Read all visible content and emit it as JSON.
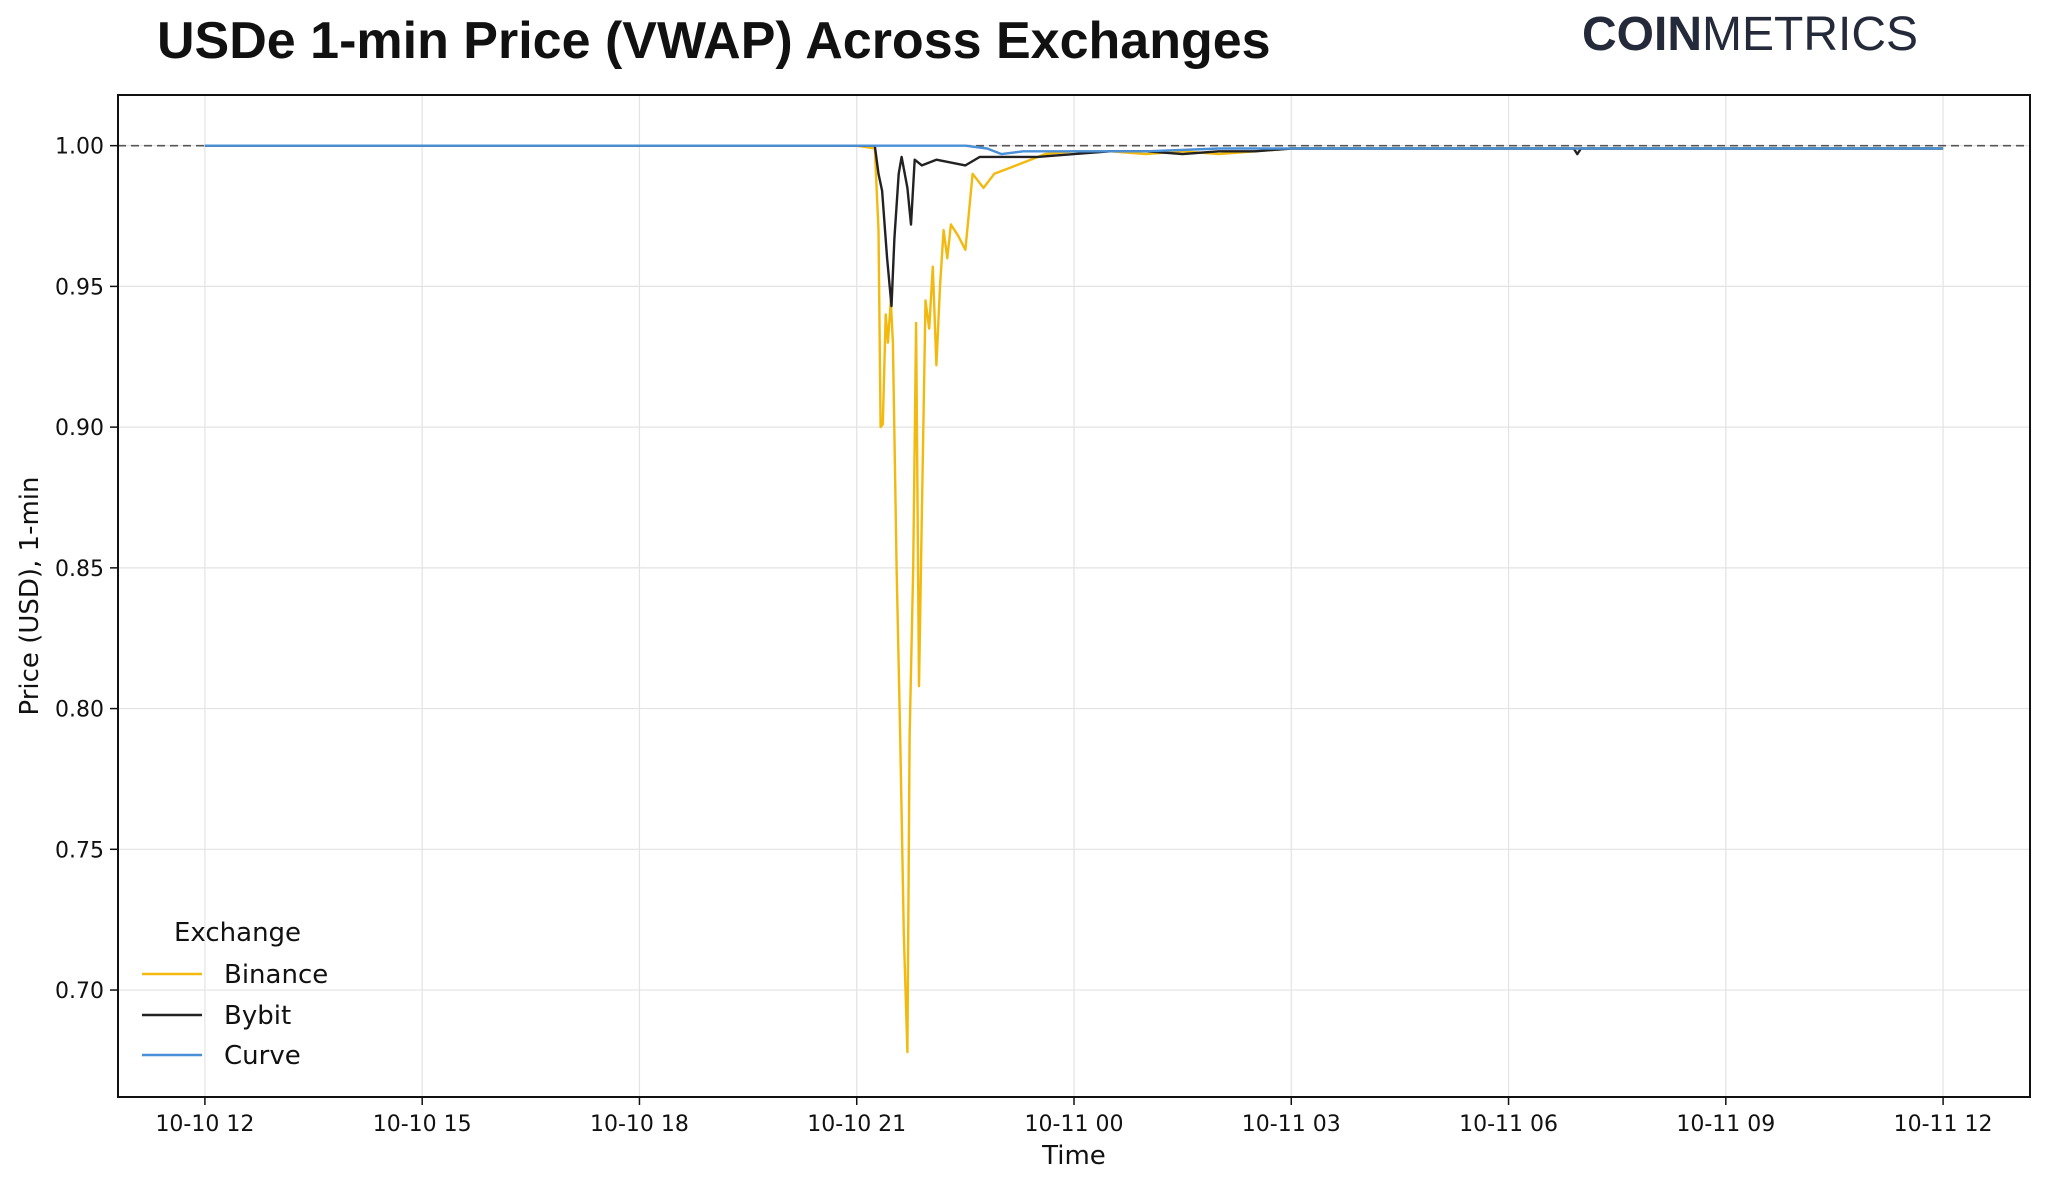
{
  "header": {
    "brand_bold": "COIN",
    "brand_light": "METRICS"
  },
  "chart_data": {
    "type": "line",
    "title": "USDe 1-min Price (VWAP) Across Exchanges",
    "xlabel": "Time",
    "ylabel": "Price (USD), 1-min",
    "x_ticks": [
      "10-10 12",
      "10-10 15",
      "10-10 18",
      "10-10 21",
      "10-11 00",
      "10-11 03",
      "10-11 06",
      "10-11 09",
      "10-11 12"
    ],
    "y_ticks": [
      "0.70",
      "0.75",
      "0.80",
      "0.85",
      "0.90",
      "0.95",
      "1.00"
    ],
    "xlim_hours": [
      -1.2,
      25.2
    ],
    "ylim": [
      0.662,
      1.018
    ],
    "reference_line": 1.0,
    "grid": true,
    "legend": {
      "title": "Exchange",
      "placement": "bottom-left"
    },
    "series": [
      {
        "name": "Binance",
        "color": "#f2b90f",
        "points_hours": [
          [
            0.0,
            1.0
          ],
          [
            9.0,
            1.0
          ],
          [
            9.25,
            0.999
          ],
          [
            9.3,
            0.97
          ],
          [
            9.33,
            0.9
          ],
          [
            9.36,
            0.901
          ],
          [
            9.4,
            0.94
          ],
          [
            9.43,
            0.93
          ],
          [
            9.47,
            0.945
          ],
          [
            9.5,
            0.93
          ],
          [
            9.55,
            0.85
          ],
          [
            9.6,
            0.79
          ],
          [
            9.65,
            0.72
          ],
          [
            9.7,
            0.678
          ],
          [
            9.73,
            0.79
          ],
          [
            9.78,
            0.85
          ],
          [
            9.82,
            0.937
          ],
          [
            9.86,
            0.808
          ],
          [
            9.9,
            0.87
          ],
          [
            9.95,
            0.945
          ],
          [
            10.0,
            0.935
          ],
          [
            10.05,
            0.957
          ],
          [
            10.1,
            0.922
          ],
          [
            10.15,
            0.95
          ],
          [
            10.2,
            0.97
          ],
          [
            10.25,
            0.96
          ],
          [
            10.3,
            0.972
          ],
          [
            10.4,
            0.968
          ],
          [
            10.5,
            0.963
          ],
          [
            10.6,
            0.99
          ],
          [
            10.75,
            0.985
          ],
          [
            10.9,
            0.99
          ],
          [
            11.1,
            0.992
          ],
          [
            11.3,
            0.994
          ],
          [
            11.6,
            0.997
          ],
          [
            12.0,
            0.998
          ],
          [
            12.5,
            0.998
          ],
          [
            13.0,
            0.997
          ],
          [
            13.5,
            0.998
          ],
          [
            14.0,
            0.997
          ],
          [
            14.5,
            0.998
          ],
          [
            15.0,
            0.999
          ],
          [
            18.0,
            0.999
          ],
          [
            21.0,
            0.999
          ],
          [
            24.0,
            0.999
          ]
        ]
      },
      {
        "name": "Bybit",
        "color": "#222222",
        "points_hours": [
          [
            0.0,
            1.0
          ],
          [
            9.0,
            1.0
          ],
          [
            9.25,
            1.0
          ],
          [
            9.3,
            0.99
          ],
          [
            9.35,
            0.984
          ],
          [
            9.42,
            0.96
          ],
          [
            9.48,
            0.943
          ],
          [
            9.52,
            0.967
          ],
          [
            9.58,
            0.99
          ],
          [
            9.62,
            0.996
          ],
          [
            9.7,
            0.985
          ],
          [
            9.75,
            0.972
          ],
          [
            9.8,
            0.995
          ],
          [
            9.9,
            0.993
          ],
          [
            10.1,
            0.995
          ],
          [
            10.3,
            0.994
          ],
          [
            10.5,
            0.993
          ],
          [
            10.7,
            0.996
          ],
          [
            11.0,
            0.996
          ],
          [
            11.5,
            0.996
          ],
          [
            12.0,
            0.997
          ],
          [
            12.5,
            0.998
          ],
          [
            13.0,
            0.998
          ],
          [
            13.5,
            0.997
          ],
          [
            14.0,
            0.998
          ],
          [
            14.5,
            0.998
          ],
          [
            15.0,
            0.999
          ],
          [
            18.0,
            0.999
          ],
          [
            18.9,
            0.999
          ],
          [
            18.95,
            0.997
          ],
          [
            19.0,
            0.999
          ],
          [
            21.0,
            0.999
          ],
          [
            24.0,
            0.999
          ]
        ]
      },
      {
        "name": "Curve",
        "color": "#4a90d9",
        "points_hours": [
          [
            0.0,
            1.0
          ],
          [
            3.0,
            1.0
          ],
          [
            6.0,
            1.0
          ],
          [
            9.0,
            1.0
          ],
          [
            10.5,
            1.0
          ],
          [
            10.8,
            0.999
          ],
          [
            11.0,
            0.997
          ],
          [
            11.3,
            0.998
          ],
          [
            12.0,
            0.998
          ],
          [
            13.0,
            0.998
          ],
          [
            14.0,
            0.999
          ],
          [
            15.0,
            0.999
          ],
          [
            18.0,
            0.999
          ],
          [
            21.0,
            0.999
          ],
          [
            24.0,
            0.999
          ]
        ]
      }
    ]
  }
}
